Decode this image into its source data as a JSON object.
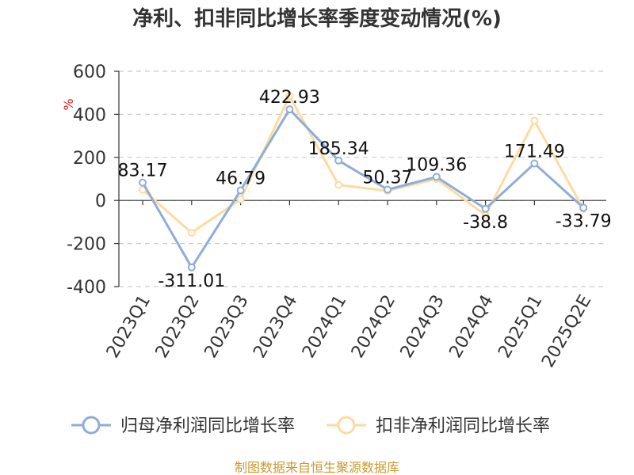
{
  "chart_data": {
    "type": "line",
    "title": "净利、扣非同比增长率季度变动情况(%)",
    "ylabel": "%",
    "ylim": [
      -400,
      600
    ],
    "yticks": [
      600,
      400,
      200,
      0,
      -200,
      -400
    ],
    "categories": [
      "2023Q1",
      "2023Q2",
      "2023Q3",
      "2023Q4",
      "2024Q1",
      "2024Q2",
      "2024Q3",
      "2024Q4",
      "2025Q1",
      "2025Q2E"
    ],
    "series": [
      {
        "name": "归母净利润同比增长率",
        "color": "#8fadd9",
        "values": [
          83.17,
          -311.01,
          46.79,
          422.93,
          185.34,
          50.37,
          109.36,
          -38.8,
          171.49,
          -33.79
        ],
        "labels": [
          "83.17",
          "-311.01",
          "46.79",
          "422.93",
          "185.34",
          "50.37",
          "109.36",
          "-38.8",
          "171.49",
          "-33.79"
        ]
      },
      {
        "name": "扣非净利润同比增长率",
        "color": "#fddba0",
        "values": [
          50,
          -150,
          5,
          485,
          72,
          45,
          100,
          -68,
          370,
          -40
        ]
      }
    ],
    "grid": true,
    "legend": "bottom"
  },
  "source": "制图数据来自恒生聚源数据库"
}
